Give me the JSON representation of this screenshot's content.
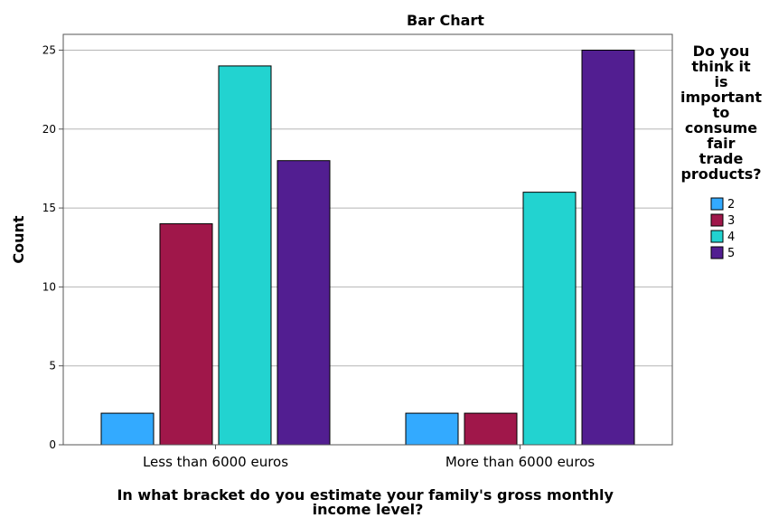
{
  "chart_data": {
    "type": "bar",
    "title": "Bar Chart",
    "xlabel": "In what bracket do you estimate your family's gross monthly income level?",
    "ylabel": "Count",
    "categories": [
      "Less than 6000 euros",
      "More than 6000 euros"
    ],
    "series": [
      {
        "name": "2",
        "color": "#33aaff",
        "values": [
          2,
          2
        ]
      },
      {
        "name": "3",
        "color": "#a0174a",
        "values": [
          14,
          2
        ]
      },
      {
        "name": "4",
        "color": "#22d3d0",
        "values": [
          24,
          16
        ]
      },
      {
        "name": "5",
        "color": "#521e91",
        "values": [
          18,
          25
        ]
      }
    ],
    "ylim": [
      0,
      26
    ],
    "yticks": [
      0,
      5,
      10,
      15,
      20,
      25
    ],
    "grid": true,
    "legend": {
      "title": "Do you think it is important to consume fair trade products?",
      "placement": "right"
    }
  }
}
